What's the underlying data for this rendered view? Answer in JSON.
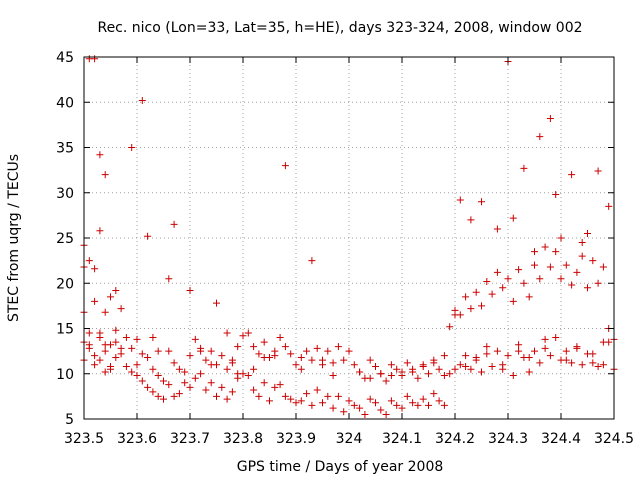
{
  "chart_data": {
    "type": "scatter",
    "title": "Rec. nico (Lon=33, Lat=35, h=HE), days 323-324, 2008, window 002",
    "xlabel": "GPS time / Days of year 2008",
    "ylabel": "STEC from uqrg / TECUs",
    "xlim": [
      323.5,
      324.5
    ],
    "ylim": [
      5,
      45
    ],
    "xticks": [
      "323.5",
      "323.6",
      "323.7",
      "323.8",
      "323.9",
      "324",
      "324.1",
      "324.2",
      "324.3",
      "324.4",
      "324.5"
    ],
    "yticks": [
      "5",
      "10",
      "15",
      "20",
      "25",
      "30",
      "35",
      "40",
      "45"
    ],
    "grid": true,
    "marker": "plus",
    "color": "#cc0000",
    "series": [
      {
        "x": [
          323.5,
          323.5,
          323.5,
          323.5,
          323.5,
          323.51,
          323.51,
          323.51,
          323.51,
          323.52,
          323.52,
          323.52,
          323.52,
          323.53,
          323.53,
          323.53,
          323.53,
          323.54,
          323.54,
          323.54,
          323.54,
          323.55,
          323.55,
          323.55,
          323.56,
          323.56,
          323.56,
          323.57,
          323.57,
          323.58,
          323.58,
          323.59,
          323.59,
          323.6,
          323.6,
          323.6,
          323.61,
          323.61,
          323.62,
          323.62,
          323.63,
          323.63,
          323.64,
          323.64,
          323.65,
          323.65,
          323.66,
          323.66,
          323.67,
          323.67,
          323.68,
          323.68,
          323.69,
          323.69,
          323.7,
          323.7,
          323.71,
          323.71,
          323.72,
          323.72,
          323.73,
          323.73,
          323.74,
          323.74,
          323.75,
          323.75,
          323.76,
          323.76,
          323.77,
          323.77,
          323.78,
          323.78,
          323.79,
          323.79,
          323.8,
          323.8,
          323.81,
          323.81,
          323.82,
          323.82,
          323.83,
          323.83,
          323.84,
          323.84,
          323.85,
          323.85,
          323.86,
          323.86,
          323.87,
          323.87,
          323.88,
          323.88,
          323.89,
          323.89,
          323.9,
          323.9,
          323.91,
          323.91,
          323.92,
          323.92,
          323.93,
          323.93,
          323.94,
          323.94,
          323.95,
          323.95,
          323.96,
          323.96,
          323.97,
          323.97,
          323.98,
          323.98,
          323.99,
          323.99,
          324.0,
          324.0,
          324.01,
          324.01,
          324.02,
          324.02,
          324.03,
          324.03,
          324.04,
          324.04,
          324.05,
          324.05,
          324.06,
          324.06,
          324.07,
          324.07,
          324.08,
          324.08,
          324.09,
          324.09,
          324.1,
          324.1,
          324.11,
          324.11,
          324.12,
          324.12,
          324.13,
          324.13,
          324.14,
          324.14,
          324.15,
          324.15,
          324.16,
          324.16,
          324.17,
          324.17,
          324.18,
          324.18,
          324.19,
          324.19,
          324.2,
          324.2,
          324.21,
          324.21,
          324.22,
          324.22,
          324.23,
          324.23,
          324.24,
          324.24,
          324.25,
          324.25,
          324.26,
          324.26,
          324.27,
          324.27,
          324.28,
          324.28,
          324.29,
          324.29,
          324.3,
          324.3,
          324.31,
          324.31,
          324.32,
          324.32,
          324.33,
          324.33,
          324.34,
          324.34,
          324.35,
          324.35,
          324.36,
          324.36,
          324.37,
          324.37,
          324.38,
          324.38,
          324.39,
          324.39,
          324.4,
          324.4,
          324.41,
          324.41,
          324.42,
          324.42,
          324.43,
          324.43,
          324.44,
          324.44,
          324.45,
          324.45,
          324.46,
          324.46,
          324.47,
          324.47,
          324.48,
          324.48,
          324.49,
          324.49,
          324.5,
          324.5,
          323.51,
          323.53,
          323.54,
          323.55,
          323.52,
          323.59,
          323.61,
          323.62,
          323.67,
          323.66,
          323.88,
          323.93,
          323.7,
          323.75,
          323.77,
          324.2,
          324.21,
          324.23,
          324.25,
          324.3,
          324.31,
          324.33,
          324.36,
          324.38,
          324.39,
          324.42,
          324.47,
          324.49,
          324.35,
          324.4,
          324.44,
          324.28,
          324.45,
          323.56,
          323.57,
          323.63,
          323.64,
          323.72,
          323.74,
          323.78,
          323.79,
          323.82,
          323.84,
          323.86,
          323.91,
          323.95,
          323.97,
          324.02,
          324.04,
          324.06,
          324.08,
          324.1,
          324.12,
          324.14,
          324.16,
          324.18,
          324.22,
          324.24,
          324.26,
          324.29,
          324.32,
          324.34,
          324.37,
          324.41,
          324.43,
          324.46,
          324.48
        ],
        "y": [
          16.8,
          24.2,
          13.5,
          11.5,
          21.8,
          44.8,
          22.5,
          13.2,
          14.5,
          18.0,
          21.6,
          12.0,
          11.0,
          34.2,
          25.8,
          14.0,
          11.5,
          32.0,
          16.8,
          12.5,
          10.2,
          18.5,
          13.2,
          10.5,
          19.2,
          14.8,
          11.8,
          17.2,
          12.2,
          14.0,
          10.8,
          12.8,
          10.2,
          13.8,
          11.0,
          9.8,
          12.2,
          9.2,
          11.8,
          8.5,
          10.5,
          8.0,
          9.8,
          7.5,
          9.2,
          7.2,
          12.5,
          8.8,
          11.2,
          7.5,
          10.5,
          7.8,
          10.2,
          9.0,
          12.0,
          8.5,
          13.8,
          9.5,
          12.5,
          10.0,
          11.5,
          8.2,
          12.5,
          9.0,
          11.0,
          7.5,
          12.0,
          8.5,
          10.5,
          7.2,
          11.2,
          8.0,
          13.0,
          9.5,
          14.2,
          10.0,
          14.5,
          9.8,
          13.0,
          8.2,
          12.2,
          7.5,
          13.5,
          9.0,
          11.8,
          7.0,
          12.5,
          8.5,
          14.0,
          8.8,
          13.0,
          7.5,
          12.2,
          7.2,
          11.0,
          6.8,
          11.8,
          7.0,
          12.5,
          7.8,
          11.5,
          6.5,
          12.8,
          8.2,
          11.5,
          6.8,
          12.5,
          7.5,
          11.2,
          6.2,
          13.0,
          7.5,
          11.5,
          5.8,
          12.5,
          7.0,
          11.0,
          6.5,
          10.2,
          6.2,
          9.5,
          5.5,
          11.5,
          7.2,
          10.8,
          6.8,
          10.0,
          6.0,
          9.2,
          5.5,
          11.0,
          7.0,
          10.5,
          6.5,
          9.8,
          6.2,
          11.2,
          7.5,
          10.2,
          6.8,
          9.5,
          6.5,
          10.8,
          7.2,
          10.0,
          6.5,
          11.2,
          7.8,
          10.5,
          7.0,
          9.8,
          6.5,
          15.2,
          10.0,
          17.0,
          10.5,
          16.5,
          11.0,
          18.5,
          12.0,
          17.2,
          10.5,
          19.0,
          11.8,
          17.5,
          10.2,
          20.2,
          13.0,
          18.8,
          10.8,
          21.2,
          12.5,
          19.5,
          10.5,
          20.5,
          12.0,
          18.0,
          9.8,
          21.5,
          13.2,
          20.0,
          11.8,
          18.5,
          10.2,
          22.0,
          12.5,
          20.5,
          11.2,
          24.0,
          13.8,
          21.8,
          12.0,
          23.5,
          14.0,
          20.5,
          11.5,
          22.0,
          12.5,
          19.8,
          11.2,
          21.2,
          12.8,
          23.0,
          11.0,
          19.5,
          12.2,
          22.5,
          11.2,
          20.0,
          10.8,
          21.8,
          11.0,
          13.5,
          15.0,
          10.5,
          13.8,
          12.8,
          14.5,
          13.2,
          10.8,
          44.8,
          35.0,
          40.2,
          25.2,
          26.5,
          20.5,
          33.0,
          22.5,
          19.2,
          17.8,
          14.5,
          16.5,
          29.2,
          27.0,
          29.0,
          44.5,
          27.2,
          32.7,
          36.2,
          38.2,
          29.8,
          32.0,
          32.4,
          28.5,
          23.5,
          25.0,
          24.5,
          26.0,
          25.5,
          13.5,
          12.8,
          14.0,
          12.5,
          12.8,
          11.0,
          11.5,
          10.0,
          10.5,
          11.8,
          12.0,
          10.5,
          11.0,
          9.8,
          10.2,
          9.5,
          10.0,
          9.8,
          10.2,
          10.5,
          11.0,
          11.5,
          12.0,
          10.8,
          11.5,
          12.2,
          11.0,
          12.5,
          11.8,
          12.8,
          11.5,
          13.0,
          12.2,
          13.5
        ]
      }
    ]
  }
}
